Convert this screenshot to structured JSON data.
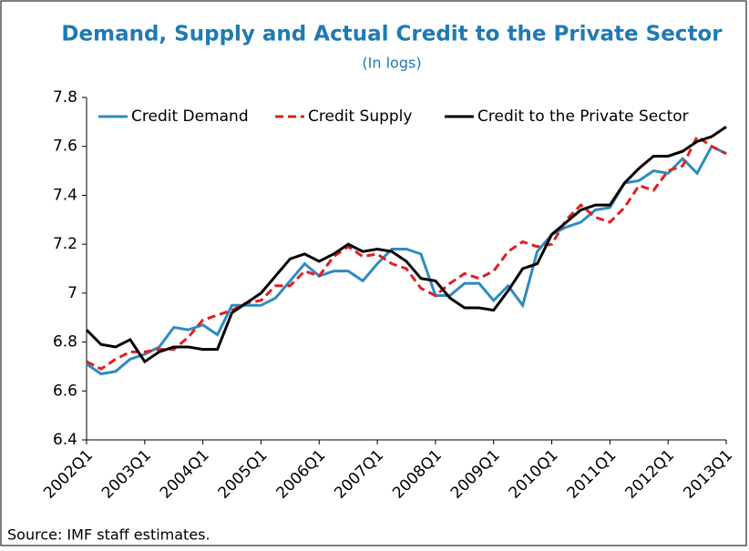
{
  "chart_data": {
    "type": "line",
    "title": "Demand, Supply and Actual Credit to the Private Sector",
    "subtitle": "(In logs)",
    "source": "Source: IMF staff estimates.",
    "categories": [
      "2002Q1",
      null,
      null,
      null,
      "2003Q1",
      null,
      null,
      null,
      "2004Q1",
      null,
      null,
      null,
      "2005Q1",
      null,
      null,
      null,
      "2006Q1",
      null,
      null,
      null,
      "2007Q1",
      null,
      null,
      null,
      "2008Q1",
      null,
      null,
      null,
      "2009Q1",
      null,
      null,
      null,
      "2010Q1",
      null,
      null,
      null,
      "2011Q1",
      null,
      null,
      null,
      "2012Q1",
      null,
      null,
      null,
      "2013Q1"
    ],
    "series": [
      {
        "name": "Credit Demand",
        "color": "#2e8bc0",
        "dash": "solid",
        "values": [
          6.71,
          6.67,
          6.68,
          6.73,
          6.75,
          6.78,
          6.86,
          6.85,
          6.87,
          6.83,
          6.95,
          6.95,
          6.95,
          6.98,
          7.05,
          7.12,
          7.07,
          7.09,
          7.09,
          7.05,
          7.12,
          7.18,
          7.18,
          7.16,
          6.99,
          6.99,
          7.04,
          7.04,
          6.97,
          7.03,
          6.95,
          7.17,
          7.24,
          7.27,
          7.29,
          7.34,
          7.35,
          7.45,
          7.46,
          7.5,
          7.49,
          7.55,
          7.49,
          7.6,
          7.57
        ]
      },
      {
        "name": "Credit Supply",
        "color": "#e02020",
        "dash": "dashed",
        "values": [
          6.72,
          6.69,
          6.73,
          6.76,
          6.76,
          6.77,
          6.77,
          6.82,
          6.89,
          6.91,
          6.93,
          6.96,
          6.97,
          7.03,
          7.03,
          7.09,
          7.07,
          7.15,
          7.19,
          7.15,
          7.16,
          7.12,
          7.1,
          7.02,
          6.99,
          7.04,
          7.08,
          7.06,
          7.09,
          7.17,
          7.21,
          7.19,
          7.2,
          7.3,
          7.36,
          7.31,
          7.29,
          7.35,
          7.44,
          7.42,
          7.5,
          7.52,
          7.64,
          7.6,
          7.57
        ]
      },
      {
        "name": "Credit to the Private Sector",
        "color": "#000000",
        "dash": "solid",
        "values": [
          6.85,
          6.79,
          6.78,
          6.81,
          6.72,
          6.76,
          6.78,
          6.78,
          6.77,
          6.77,
          6.92,
          6.96,
          7.0,
          7.07,
          7.14,
          7.16,
          7.13,
          7.16,
          7.2,
          7.17,
          7.18,
          7.17,
          7.13,
          7.06,
          7.05,
          6.98,
          6.94,
          6.94,
          6.93,
          7.01,
          7.1,
          7.12,
          7.24,
          7.29,
          7.34,
          7.36,
          7.36,
          7.45,
          7.51,
          7.56,
          7.56,
          7.58,
          7.62,
          7.64,
          7.68
        ]
      }
    ],
    "ylim": [
      6.4,
      7.8
    ],
    "yticks": [
      6.4,
      6.6,
      6.8,
      7,
      7.2,
      7.4,
      7.6,
      7.8
    ],
    "grid": false,
    "legend": "top"
  }
}
